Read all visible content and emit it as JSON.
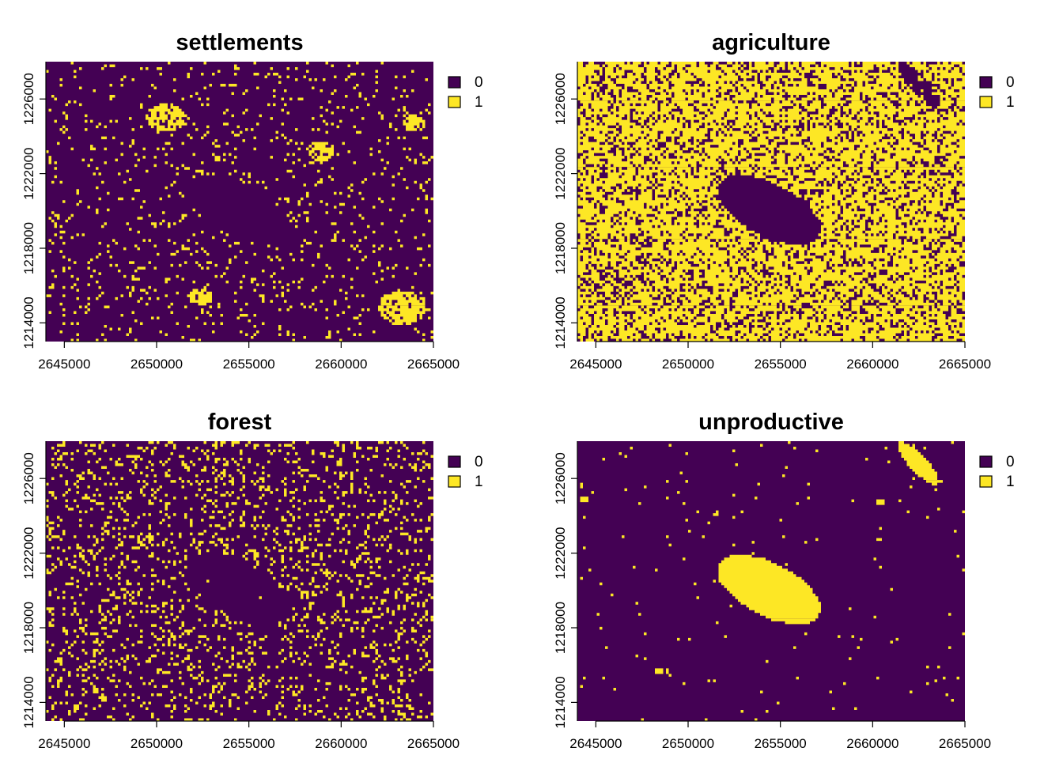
{
  "figure": {
    "colors": {
      "0": "#440154",
      "1": "#FDE725"
    },
    "panel_titles": [
      "settlements",
      "agriculture",
      "forest",
      "unproductive"
    ]
  },
  "chart_data": [
    {
      "type": "heatmap",
      "title": "settlements",
      "xlim": [
        2644000,
        2665000
      ],
      "ylim": [
        1213000,
        1228000
      ],
      "x_ticks": [
        2645000,
        2650000,
        2655000,
        2660000,
        2665000
      ],
      "y_ticks": [
        1214000,
        1218000,
        1222000,
        1226000
      ],
      "x_tick_labels": [
        "2645000",
        "2650000",
        "2655000",
        "2660000",
        "2665000"
      ],
      "y_tick_labels": [
        "1214000",
        "1218000",
        "1222000",
        "1226000"
      ],
      "legend": {
        "placement": "right",
        "entries": [
          {
            "value": "0",
            "color": "#440154"
          },
          {
            "value": "1",
            "color": "#FDE725"
          }
        ]
      }
    },
    {
      "type": "heatmap",
      "title": "agriculture",
      "xlim": [
        2644000,
        2665000
      ],
      "ylim": [
        1213000,
        1228000
      ],
      "x_ticks": [
        2645000,
        2650000,
        2655000,
        2660000,
        2665000
      ],
      "y_ticks": [
        1214000,
        1218000,
        1222000,
        1226000
      ],
      "x_tick_labels": [
        "2645000",
        "2650000",
        "2655000",
        "2660000",
        "2665000"
      ],
      "y_tick_labels": [
        "1214000",
        "1218000",
        "1222000",
        "1226000"
      ],
      "legend": {
        "placement": "right",
        "entries": [
          {
            "value": "0",
            "color": "#440154"
          },
          {
            "value": "1",
            "color": "#FDE725"
          }
        ]
      }
    },
    {
      "type": "heatmap",
      "title": "forest",
      "xlim": [
        2644000,
        2665000
      ],
      "ylim": [
        1213000,
        1228000
      ],
      "x_ticks": [
        2645000,
        2650000,
        2655000,
        2660000,
        2665000
      ],
      "y_ticks": [
        1214000,
        1218000,
        1222000,
        1226000
      ],
      "x_tick_labels": [
        "2645000",
        "2650000",
        "2655000",
        "2660000",
        "2665000"
      ],
      "y_tick_labels": [
        "1214000",
        "1218000",
        "1222000",
        "1226000"
      ],
      "legend": {
        "placement": "right",
        "entries": [
          {
            "value": "0",
            "color": "#440154"
          },
          {
            "value": "1",
            "color": "#FDE725"
          }
        ]
      }
    },
    {
      "type": "heatmap",
      "title": "unproductive",
      "xlim": [
        2644000,
        2665000
      ],
      "ylim": [
        1213000,
        1228000
      ],
      "x_ticks": [
        2645000,
        2650000,
        2655000,
        2660000,
        2665000
      ],
      "y_ticks": [
        1214000,
        1218000,
        1222000,
        1226000
      ],
      "x_tick_labels": [
        "2645000",
        "2650000",
        "2655000",
        "2660000",
        "2665000"
      ],
      "y_tick_labels": [
        "1214000",
        "1218000",
        "1222000",
        "1226000"
      ],
      "legend": {
        "placement": "right",
        "entries": [
          {
            "value": "0",
            "color": "#440154"
          },
          {
            "value": "1",
            "color": "#FDE725"
          }
        ]
      }
    }
  ]
}
